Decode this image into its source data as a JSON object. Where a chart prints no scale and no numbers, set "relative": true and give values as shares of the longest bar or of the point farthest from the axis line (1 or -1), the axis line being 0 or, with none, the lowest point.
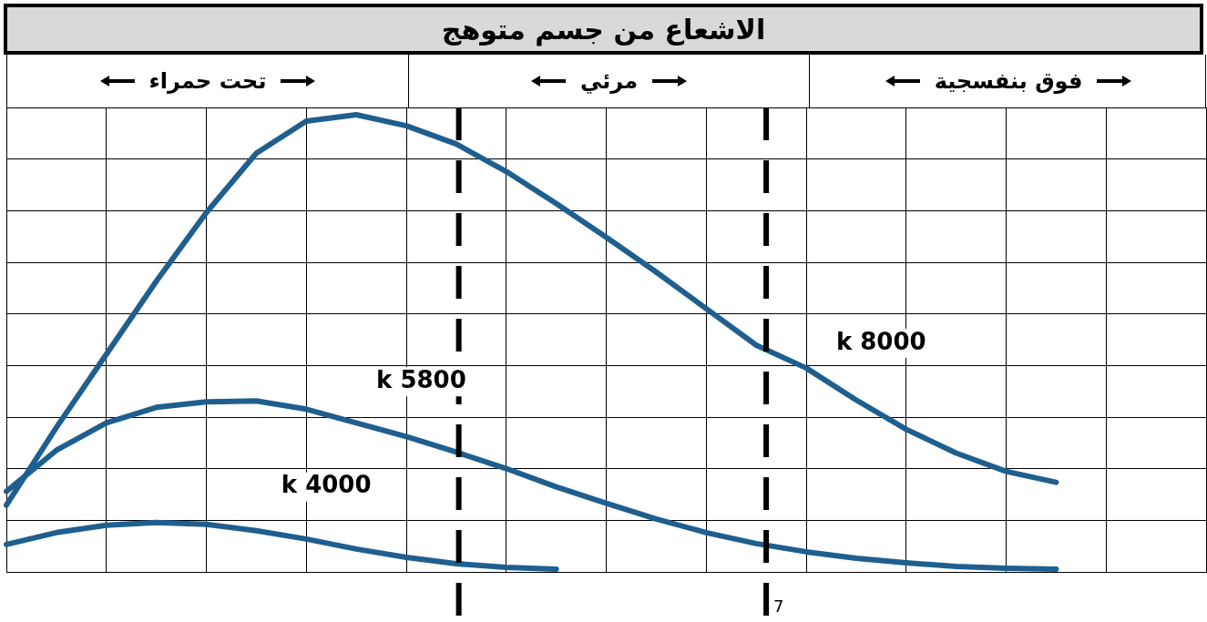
{
  "chart_data": {
    "type": "line",
    "title": "الاشعاع من جسم متوهج",
    "relative": true,
    "categories": [
      null,
      null,
      null,
      null,
      null,
      null,
      null,
      null,
      null,
      null,
      null,
      null,
      null,
      null,
      null,
      null,
      null,
      null,
      null,
      null,
      null,
      null,
      null,
      null,
      null
    ],
    "grid": true,
    "legend": false,
    "marker": "none",
    "line_style": "solid",
    "series": [
      {
        "name": "k 8000",
        "color": "#1f5f8f",
        "values": [
          0.146,
          0.316,
          0.476,
          0.636,
          0.786,
          0.916,
          0.986,
          1,
          0.976,
          0.936,
          0.876,
          0.806,
          0.732,
          0.656,
          0.576,
          0.496,
          0.446,
          0.376,
          0.312,
          0.26,
          0.22,
          0.196,
          null,
          null,
          null
        ]
      },
      {
        "name": "k 5800",
        "color": "#1f5f8f",
        "values": [
          0.176,
          0.266,
          0.326,
          0.36,
          0.372,
          0.374,
          0.356,
          0.326,
          0.296,
          0.262,
          0.226,
          0.186,
          0.15,
          0.116,
          0.086,
          0.062,
          0.044,
          0.03,
          0.02,
          0.012,
          0.008,
          0.006,
          null,
          null,
          null
        ]
      },
      {
        "name": "k 4000",
        "color": "#1f5f8f",
        "values": [
          0.06,
          0.086,
          0.102,
          0.108,
          0.104,
          0.09,
          0.072,
          0.05,
          0.032,
          0.018,
          0.01,
          0.006,
          null,
          null,
          null,
          null,
          null,
          null,
          null,
          null,
          null,
          null,
          null,
          null,
          null
        ]
      }
    ],
    "annotations": [
      "تحت حمراء",
      "مرئي",
      "فوق بنفسجية",
      "7"
    ]
  }
}
